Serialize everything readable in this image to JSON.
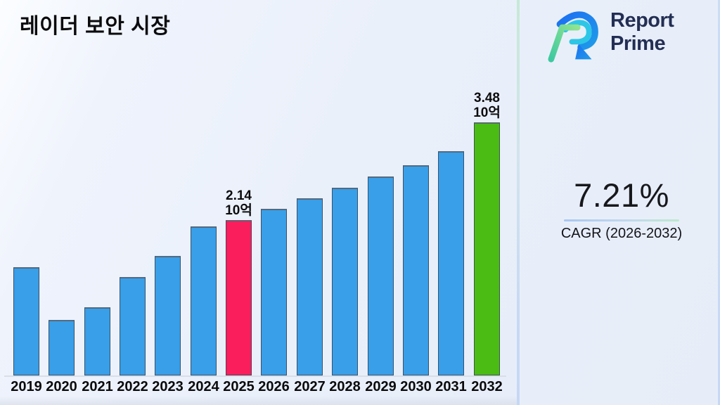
{
  "title": "레이더 보안 시장",
  "logo": {
    "line1": "Report",
    "line2": "Prime"
  },
  "cagr": {
    "value": "7.21%",
    "label": "CAGR (2026-2032)"
  },
  "chart_data": {
    "type": "bar",
    "title": "레이더 보안 시장",
    "categories": [
      2019,
      2020,
      2021,
      2022,
      2023,
      2024,
      2025,
      2026,
      2027,
      2028,
      2029,
      2030,
      2031,
      2032
    ],
    "values": [
      1.49,
      0.76,
      0.94,
      1.35,
      1.64,
      2.05,
      2.14,
      2.29,
      2.43,
      2.58,
      2.73,
      2.89,
      3.08,
      3.48
    ],
    "unit_label": "10억",
    "xlabel": "",
    "ylabel": "",
    "ylim": [
      0,
      3.8
    ],
    "grid": false,
    "legend": false,
    "highlight_current_year": 2025,
    "highlight_final_year": 2032,
    "annotations": [
      {
        "year": 2025,
        "line1": "2.14",
        "line2": "10억"
      },
      {
        "year": 2032,
        "line1": "3.48",
        "line2": "10억"
      }
    ],
    "colors": {
      "default": "#389FE8",
      "highlight_current": "#FA1E5D",
      "highlight_final": "#4ABC13",
      "bar_border": "#3A4458",
      "baseline": "#D9DEE7"
    }
  }
}
